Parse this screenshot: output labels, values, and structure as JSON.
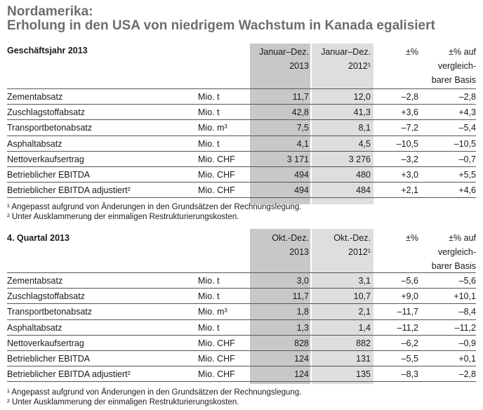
{
  "title_line1": "Nordamerika:",
  "title_line2": "Erholung in den USA von niedrigem Wachstum in Kanada egalisiert",
  "tables": [
    {
      "label": "Geschäftsjahr 2013",
      "col1": [
        "Januar–Dez.",
        "2013"
      ],
      "col2": [
        "Januar–Dez.",
        "2012¹"
      ],
      "col3": [
        "±%"
      ],
      "col4": [
        "±% auf",
        "vergleich-",
        "barer Basis"
      ],
      "rows": [
        {
          "label": "Zementabsatz",
          "unit": "Mio. t",
          "v1": "11,7",
          "v2": "12,0",
          "pct": "–2,8",
          "pct2": "–2,8"
        },
        {
          "label": "Zuschlagstoffabsatz",
          "unit": "Mio. t",
          "v1": "42,8",
          "v2": "41,3",
          "pct": "+3,6",
          "pct2": "+4,3"
        },
        {
          "label": "Transportbetonabsatz",
          "unit": "Mio. m³",
          "v1": "7,5",
          "v2": "8,1",
          "pct": "–7,2",
          "pct2": "–5,4"
        },
        {
          "label": "Asphaltabsatz",
          "unit": "Mio. t",
          "v1": "4,1",
          "v2": "4,5",
          "pct": "–10,5",
          "pct2": "–10,5"
        },
        {
          "label": "Nettoverkaufsertrag",
          "unit": "Mio. CHF",
          "v1": "3 171",
          "v2": "3 276",
          "pct": "–3,2",
          "pct2": "–0,7"
        },
        {
          "label": "Betrieblicher EBITDA",
          "unit": "Mio. CHF",
          "v1": "494",
          "v2": "480",
          "pct": "+3,0",
          "pct2": "+5,5"
        },
        {
          "label": "Betrieblicher EBITDA adjustiert²",
          "unit": "Mio. CHF",
          "v1": "494",
          "v2": "484",
          "pct": "+2,1",
          "pct2": "+4,6"
        }
      ],
      "footnotes": [
        "¹ Angepasst aufgrund von Änderungen in den Grundsätzen der Rechnungslegung.",
        "² Unter Ausklammerung der einmaligen Restrukturierungskosten."
      ]
    },
    {
      "label": "4. Quartal 2013",
      "col1": [
        "Okt.-Dez.",
        "2013"
      ],
      "col2": [
        "Okt.-Dez.",
        "2012¹"
      ],
      "col3": [
        "±%"
      ],
      "col4": [
        "±% auf",
        "vergleich-",
        "barer Basis"
      ],
      "rows": [
        {
          "label": "Zementabsatz",
          "unit": "Mio. t",
          "v1": "3,0",
          "v2": "3,1",
          "pct": "–5,6",
          "pct2": "–5,6"
        },
        {
          "label": "Zuschlagstoffabsatz",
          "unit": "Mio. t",
          "v1": "11,7",
          "v2": "10,7",
          "pct": "+9,0",
          "pct2": "+10,1"
        },
        {
          "label": "Transportbetonabsatz",
          "unit": "Mio. m³",
          "v1": "1,8",
          "v2": "2,1",
          "pct": "–11,7",
          "pct2": "–8,4"
        },
        {
          "label": "Asphaltabsatz",
          "unit": "Mio. t",
          "v1": "1,3",
          "v2": "1,4",
          "pct": "–11,2",
          "pct2": "–11,2"
        },
        {
          "label": "Nettoverkaufsertrag",
          "unit": "Mio. CHF",
          "v1": "828",
          "v2": "882",
          "pct": "–6,2",
          "pct2": "–0,9"
        },
        {
          "label": "Betrieblicher EBITDA",
          "unit": "Mio. CHF",
          "v1": "124",
          "v2": "131",
          "pct": "–5,5",
          "pct2": "+0,1"
        },
        {
          "label": "Betrieblicher EBITDA adjustiert²",
          "unit": "Mio. CHF",
          "v1": "124",
          "v2": "135",
          "pct": "–8,3",
          "pct2": "–2,8"
        }
      ],
      "footnotes": [
        "¹ Angepasst aufgrund von Änderungen in den Grundsätzen der Rechnungslegung.",
        "² Unter Ausklammerung der einmaligen Restrukturierungskosten."
      ]
    }
  ]
}
